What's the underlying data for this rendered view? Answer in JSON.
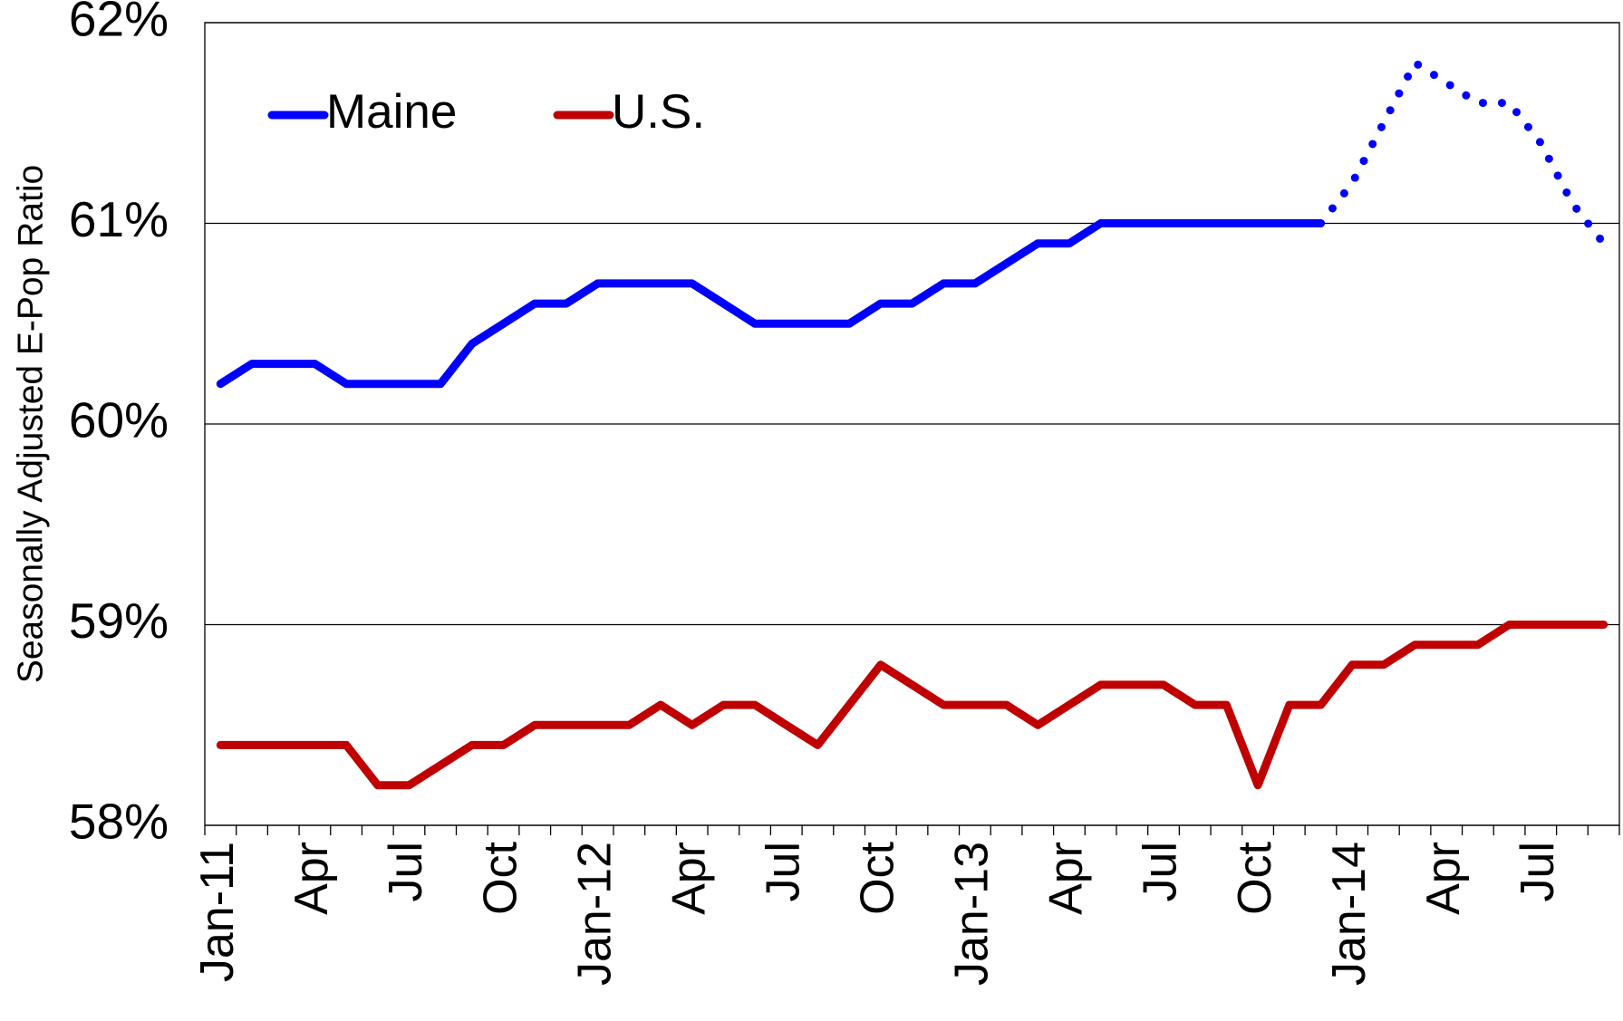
{
  "chart_data": {
    "type": "line",
    "y_label": "Seasonally Adjusted E-Pop Ratio",
    "categories": [
      "Jan-11",
      null,
      null,
      "Apr",
      null,
      null,
      "Jul",
      null,
      null,
      "Oct",
      null,
      null,
      "Jan-12",
      null,
      null,
      "Apr",
      null,
      null,
      "Jul",
      null,
      null,
      "Oct",
      null,
      null,
      "Jan-13",
      null,
      null,
      "Apr",
      null,
      null,
      "Jul",
      null,
      null,
      "Oct",
      null,
      null,
      "Jan-14",
      null,
      null,
      "Apr",
      null,
      null,
      "Jul",
      null,
      null
    ],
    "series": [
      {
        "name": "Maine",
        "color": "#0000ff",
        "dotted_from": 35,
        "values": [
          60.2,
          60.3,
          60.3,
          60.3,
          60.2,
          60.2,
          60.2,
          60.2,
          60.4,
          60.5,
          60.6,
          60.6,
          60.7,
          60.7,
          60.7,
          60.7,
          60.6,
          60.5,
          60.5,
          60.5,
          60.5,
          60.6,
          60.6,
          60.7,
          60.7,
          60.8,
          60.9,
          60.9,
          61.0,
          61.0,
          61.0,
          61.0,
          61.0,
          61.0,
          61.0,
          61.0,
          61.2,
          61.5,
          61.8,
          61.7,
          61.6,
          61.6,
          61.4,
          61.1,
          60.9
        ]
      },
      {
        "name": "U.S.",
        "color": "#c00000",
        "values": [
          58.4,
          58.4,
          58.4,
          58.4,
          58.4,
          58.2,
          58.2,
          58.3,
          58.4,
          58.4,
          58.5,
          58.5,
          58.5,
          58.5,
          58.6,
          58.5,
          58.6,
          58.6,
          58.5,
          58.4,
          58.6,
          58.8,
          58.7,
          58.6,
          58.6,
          58.6,
          58.5,
          58.6,
          58.7,
          58.7,
          58.7,
          58.6,
          58.6,
          58.2,
          58.6,
          58.6,
          58.8,
          58.8,
          58.9,
          58.9,
          58.9,
          59.0,
          59.0,
          59.0,
          59.0
        ]
      }
    ],
    "ylim": [
      58,
      62
    ],
    "yticks": [
      {
        "value": 58,
        "label": "58%"
      },
      {
        "value": 59,
        "label": "59%"
      },
      {
        "value": 60,
        "label": "60%"
      },
      {
        "value": 61,
        "label": "61%"
      },
      {
        "value": 62,
        "label": "62%"
      }
    ],
    "grid": true,
    "legend": "upper left"
  }
}
